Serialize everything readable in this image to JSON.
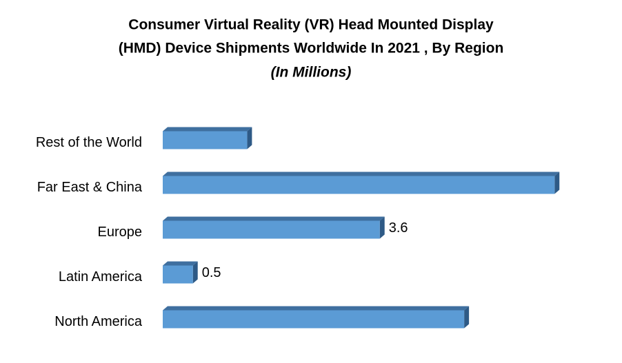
{
  "chart_data": {
    "type": "bar",
    "orientation": "horizontal",
    "title": [
      "Consumer Virtual Reality (VR) Head Mounted Display",
      "(HMD) Device Shipments Worldwide In 2021 , By Region"
    ],
    "subtitle": "(In Millions)",
    "categories": [
      "Rest of the World",
      "Far East & China",
      "Europe",
      "Latin America",
      "North America"
    ],
    "values": [
      1.4,
      6.5,
      3.6,
      0.5,
      5.0
    ],
    "value_labels": [
      null,
      null,
      "3.6",
      "0.5",
      null
    ],
    "color": "#5b9bd5",
    "xlim": [
      0,
      6.6
    ],
    "grid": false
  }
}
